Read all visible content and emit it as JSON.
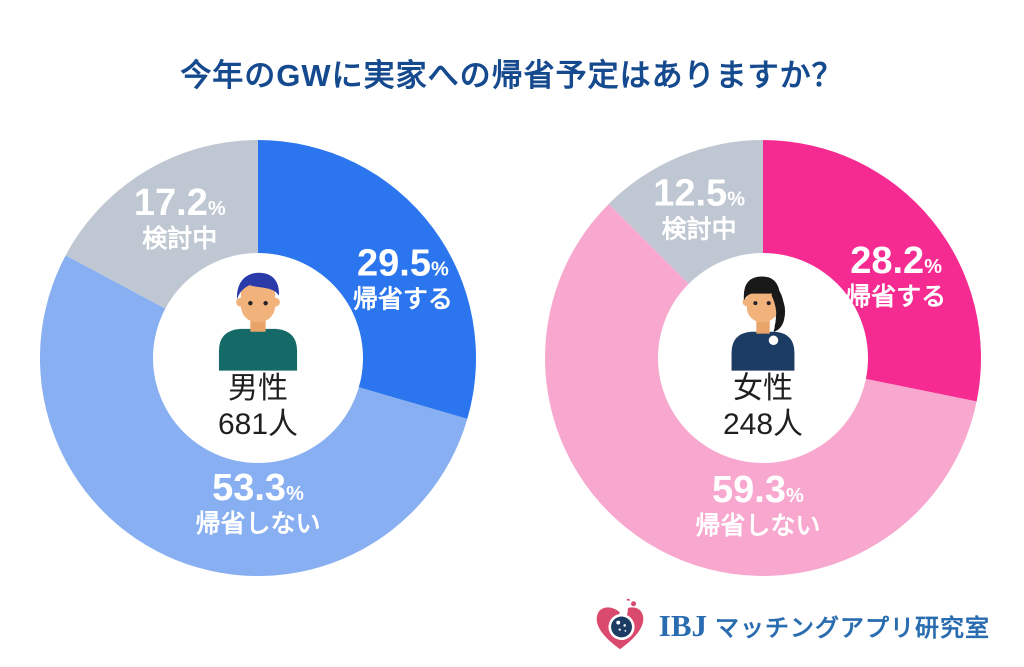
{
  "title": "今年のGWに実家への帰省予定はありますか？",
  "colors": {
    "title_text": "#164a8f",
    "slice_label_text": "#ffffff",
    "center_text": "#1f1f1f",
    "background": "#ffffff",
    "brand_text": "#2a6cb0",
    "brand_heart": "#da4a6f"
  },
  "chart_data": [
    {
      "type": "pie",
      "donut": true,
      "group_label": "男性",
      "sample_size_label": "681人",
      "avatar_icon": "male-avatar-icon",
      "unit": "%",
      "start_angle_deg": 0,
      "direction": "clockwise",
      "slices": [
        {
          "label": "帰省する",
          "value": 29.5,
          "color": "#2b76ee",
          "label_pos": {
            "angle_deg": 61,
            "r_frac": 0.76
          }
        },
        {
          "label": "帰省しない",
          "value": 53.3,
          "color": "#87aff1",
          "label_pos": {
            "angle_deg": 180,
            "r_frac": 0.66
          }
        },
        {
          "label": "検討中",
          "value": 17.2,
          "color": "#bfc7d2",
          "label_pos": {
            "angle_deg": 331,
            "r_frac": 0.74
          }
        }
      ]
    },
    {
      "type": "pie",
      "donut": true,
      "group_label": "女性",
      "sample_size_label": "248人",
      "avatar_icon": "female-avatar-icon",
      "unit": "%",
      "start_angle_deg": 0,
      "direction": "clockwise",
      "slices": [
        {
          "label": "帰省する",
          "value": 28.2,
          "color": "#f62b91",
          "label_pos": {
            "angle_deg": 58,
            "r_frac": 0.72
          }
        },
        {
          "label": "帰省しない",
          "value": 59.3,
          "color": "#f8a8ce",
          "label_pos": {
            "angle_deg": 182,
            "r_frac": 0.67
          }
        },
        {
          "label": "検討中",
          "value": 12.5,
          "color": "#bfc7d2",
          "label_pos": {
            "angle_deg": 337,
            "r_frac": 0.75
          }
        }
      ]
    }
  ],
  "footer": {
    "brand_name": "IBJ",
    "brand_suffix": "マッチングアプリ研究室",
    "logo_icon": "heart-flask-icon"
  }
}
